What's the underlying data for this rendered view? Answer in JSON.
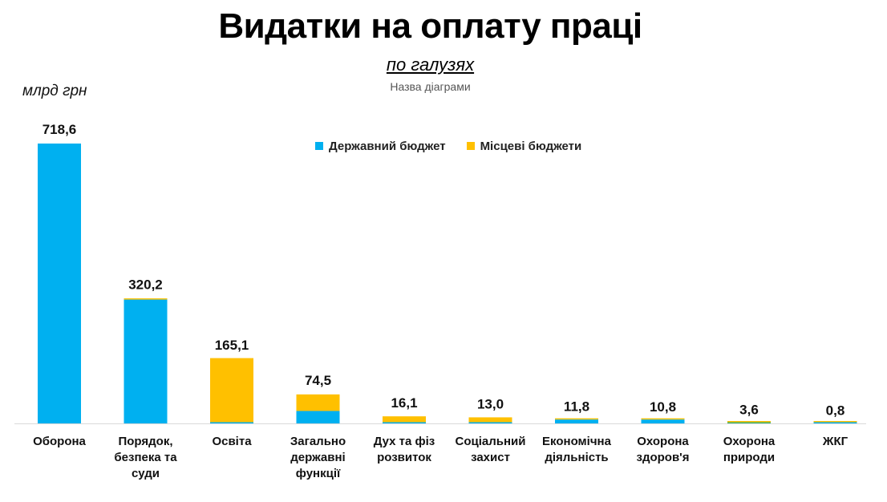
{
  "title": "Видатки на оплату праці",
  "subtitle": "по галузях",
  "chart_name": "Назва діаграми",
  "unit_label": "млрд грн",
  "chart_data": {
    "type": "bar",
    "stacked": true,
    "title": "Видатки на оплату праці",
    "subtitle": "по галузях",
    "ylabel": "млрд грн",
    "ylim": [
      0,
      718.6
    ],
    "grid": false,
    "legend_position": "top",
    "categories": [
      "Оборона",
      "Порядок, безпека та суди",
      "Освіта",
      "Загально державні функції",
      "Дух та фіз розвиток",
      "Соціальний захист",
      "Економічна діяльність",
      "Охорона здоров'я",
      "Охорона природи",
      "ЖКГ"
    ],
    "category_lines": [
      [
        "Оборона"
      ],
      [
        "Порядок,",
        "безпека та",
        "суди"
      ],
      [
        "Освіта"
      ],
      [
        "Загально",
        "державні",
        "функції"
      ],
      [
        "Дух та фіз",
        "розвиток"
      ],
      [
        "Соціальний",
        "захист"
      ],
      [
        "Економічна",
        "діяльність"
      ],
      [
        "Охорона",
        "здоров'я"
      ],
      [
        "Охорона",
        "природи"
      ],
      [
        "ЖКГ"
      ]
    ],
    "totals": [
      718.6,
      320.2,
      165.1,
      74.5,
      16.1,
      13.0,
      11.8,
      10.8,
      3.6,
      0.8
    ],
    "total_labels": [
      "718,6",
      "320,2",
      "165,1",
      "74,5",
      "16,1",
      "13,0",
      "11,8",
      "10,8",
      "3,6",
      "0,8"
    ],
    "series": [
      {
        "name": "Державний бюджет",
        "color": "#00b0f0",
        "values": [
          718.6,
          318.0,
          0.5,
          32.0,
          1.0,
          0.5,
          10.0,
          10.0,
          1.2,
          0.2
        ]
      },
      {
        "name": "Місцеві бюджети",
        "color": "#ffc000",
        "values": [
          0.0,
          2.2,
          164.6,
          42.5,
          15.1,
          12.5,
          1.8,
          0.8,
          2.4,
          0.6
        ]
      }
    ],
    "accent_colors": {
      "axis": "#d9d9d9",
      "state": "#00b0f0",
      "local": "#ffc000",
      "nature": "#3cb371"
    }
  }
}
